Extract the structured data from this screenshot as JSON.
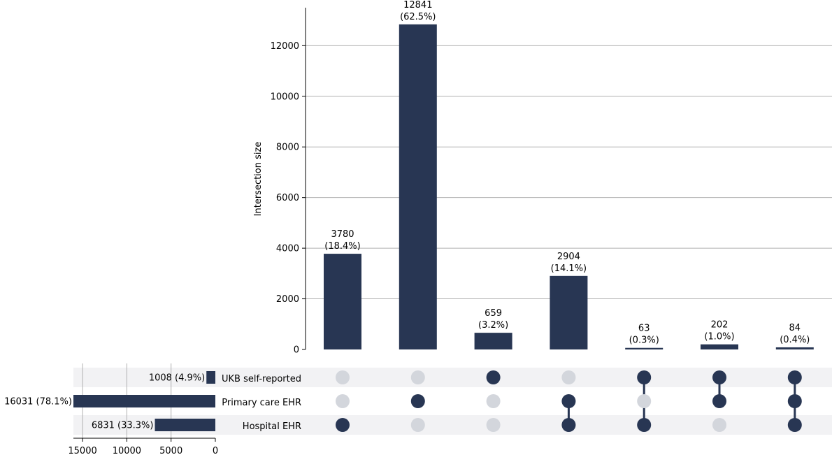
{
  "chart_data": {
    "type": "bar",
    "subtype": "upset",
    "ylabel": "Intersection size",
    "ylim": [
      0,
      13500
    ],
    "yticks": [
      0,
      2000,
      4000,
      6000,
      8000,
      10000,
      12000
    ],
    "grid": true,
    "sets": [
      {
        "name": "UKB self-reported",
        "size": 1008,
        "label": "1008 (4.9%)"
      },
      {
        "name": "Primary care EHR",
        "size": 16031,
        "label": "16031 (78.1%)"
      },
      {
        "name": "Hospital EHR",
        "size": 6831,
        "label": "6831 (33.3%)"
      }
    ],
    "set_size_xlim": [
      0,
      16031
    ],
    "set_size_ticks": [
      15000,
      10000,
      5000,
      0
    ],
    "intersections": [
      {
        "members": [
          "Hospital EHR"
        ],
        "value": 3780,
        "count_label": "3780",
        "pct_label": "(18.4%)"
      },
      {
        "members": [
          "Primary care EHR"
        ],
        "value": 12841,
        "count_label": "12841",
        "pct_label": "(62.5%)"
      },
      {
        "members": [
          "UKB self-reported"
        ],
        "value": 659,
        "count_label": "659",
        "pct_label": "(3.2%)"
      },
      {
        "members": [
          "Primary care EHR",
          "Hospital EHR"
        ],
        "value": 2904,
        "count_label": "2904",
        "pct_label": "(14.1%)"
      },
      {
        "members": [
          "UKB self-reported",
          "Hospital EHR"
        ],
        "value": 63,
        "count_label": "63",
        "pct_label": "(0.3%)"
      },
      {
        "members": [
          "UKB self-reported",
          "Primary care EHR"
        ],
        "value": 202,
        "count_label": "202",
        "pct_label": "(1.0%)"
      },
      {
        "members": [
          "UKB self-reported",
          "Primary care EHR",
          "Hospital EHR"
        ],
        "value": 84,
        "count_label": "84",
        "pct_label": "(0.4%)"
      }
    ],
    "colors": {
      "bar": "#283653",
      "dot_inactive": "#d3d6dc",
      "grid": "#b0b0b0",
      "stripe": "#f2f2f4"
    }
  }
}
